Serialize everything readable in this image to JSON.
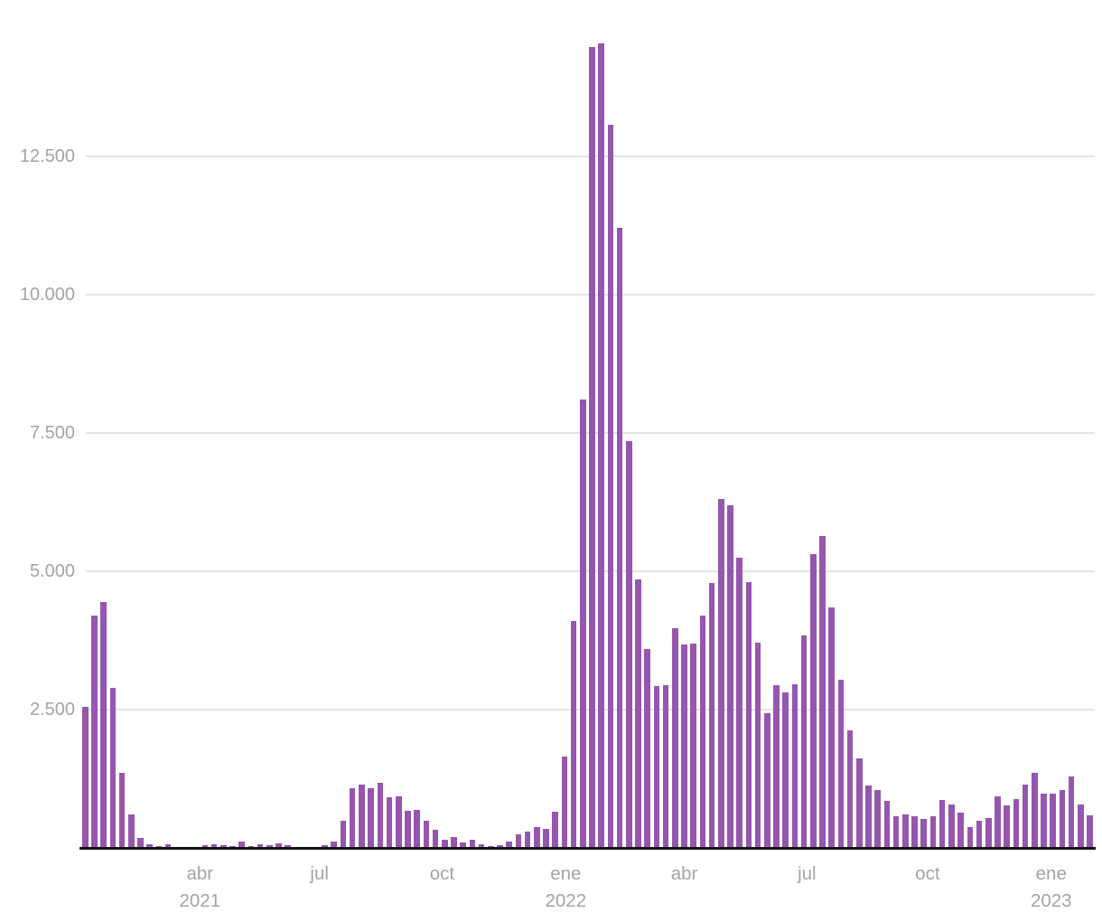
{
  "chart_data": {
    "type": "bar",
    "title": "",
    "locale": "es",
    "bar_color": "#9656ae",
    "grid_color": "#e4e4e4",
    "axis_color": "#141414",
    "label_color": "#a4a4a4",
    "ylim": [
      0,
      15000
    ],
    "grid": true,
    "legend": "none",
    "y_ticks": [
      {
        "value": 2500,
        "label": "2.500"
      },
      {
        "value": 5000,
        "label": "5.000"
      },
      {
        "value": 7500,
        "label": "7.500"
      },
      {
        "value": 10000,
        "label": "10.000"
      },
      {
        "value": 12500,
        "label": "12.500"
      }
    ],
    "x_ticks": [
      {
        "label": "abr",
        "year": "2021",
        "pos": 0.117
      },
      {
        "label": "jul",
        "year": "",
        "pos": 0.235
      },
      {
        "label": "oct",
        "year": "",
        "pos": 0.356
      },
      {
        "label": "ene",
        "year": "2022",
        "pos": 0.478
      },
      {
        "label": "abr",
        "year": "",
        "pos": 0.595
      },
      {
        "label": "jul",
        "year": "",
        "pos": 0.716
      },
      {
        "label": "oct",
        "year": "",
        "pos": 0.835
      },
      {
        "label": "ene",
        "year": "2023",
        "pos": 0.957
      }
    ],
    "values": [
      2550,
      4200,
      4450,
      2900,
      1350,
      600,
      180,
      60,
      35,
      60,
      25,
      15,
      25,
      50,
      60,
      50,
      35,
      115,
      40,
      60,
      50,
      85,
      50,
      15,
      10,
      25,
      55,
      110,
      490,
      1080,
      1145,
      1080,
      1175,
      915,
      930,
      670,
      690,
      490,
      325,
      145,
      200,
      100,
      145,
      65,
      40,
      50,
      120,
      245,
      295,
      375,
      345,
      650,
      1650,
      4100,
      8100,
      14480,
      14545,
      13080,
      11210,
      7350,
      4850,
      3590,
      2920,
      2945,
      3970,
      3675,
      3695,
      4200,
      4790,
      6310,
      6195,
      5250,
      4800,
      3710,
      2435,
      2940,
      2810,
      2960,
      3840,
      5310,
      5640,
      4345,
      3040,
      2120,
      1615,
      1125,
      1045,
      850,
      575,
      605,
      570,
      525,
      570,
      865,
      785,
      635,
      375,
      490,
      540,
      935,
      770,
      880,
      1145,
      1355,
      985,
      975,
      1045,
      1290,
      785,
      590
    ]
  }
}
